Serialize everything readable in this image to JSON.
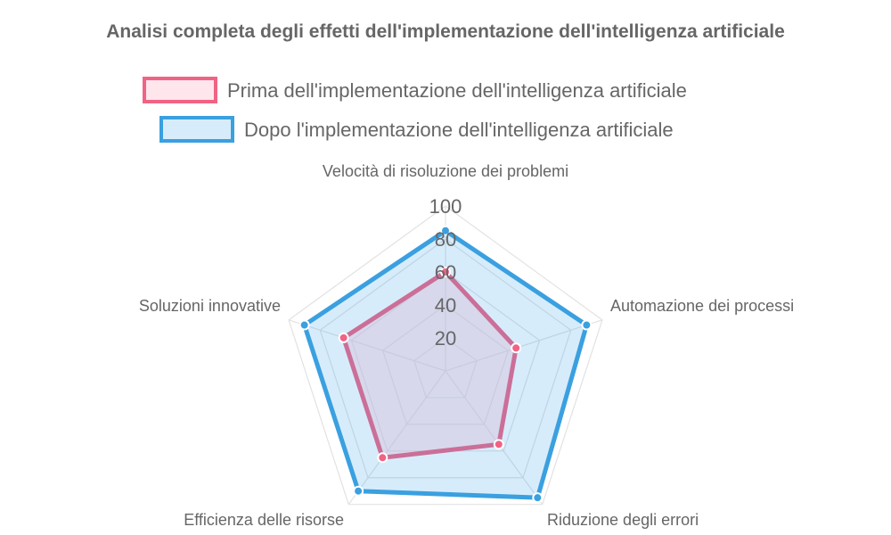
{
  "chart_data": {
    "type": "radar",
    "title": "Analisi completa degli effetti dell'implementazione dell'intelligenza artificiale",
    "categories": [
      "Velocità di risoluzione dei problemi",
      "Automazione dei processi",
      "Riduzione degli errori",
      "Efficienza delle risorse",
      "Soluzioni innovative"
    ],
    "r_range": [
      0,
      100
    ],
    "ticks": [
      "20",
      "40",
      "60",
      "80",
      "100"
    ],
    "grid": true,
    "legend_position": "top",
    "series": [
      {
        "name": "Prima dell'implementazione dell'intelligenza artificiale",
        "values": [
          60,
          45,
          55,
          65,
          65
        ],
        "color": "#f06384",
        "fill": "rgba(255,200,215,0.45)"
      },
      {
        "name": "Dopo l'implementazione dell'intelligenza artificiale",
        "values": [
          85,
          90,
          95,
          90,
          90
        ],
        "color": "#3aa0e0",
        "fill": "rgba(54,162,235,0.2)"
      }
    ]
  }
}
